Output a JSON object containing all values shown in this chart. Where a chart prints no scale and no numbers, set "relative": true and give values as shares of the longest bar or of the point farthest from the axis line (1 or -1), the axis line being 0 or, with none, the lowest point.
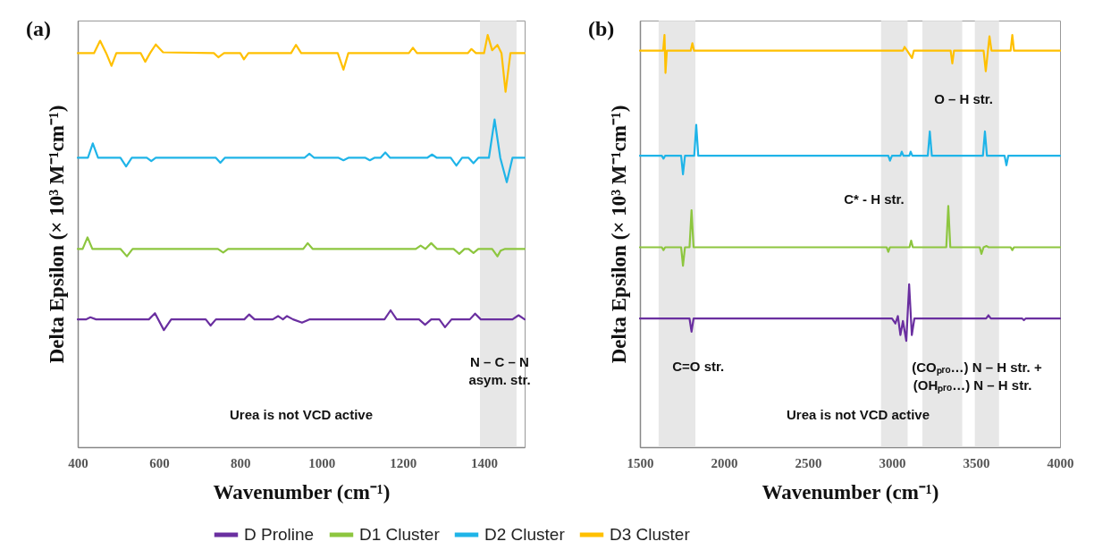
{
  "chart_data": [
    {
      "type": "line",
      "title": "(a)",
      "xlabel": "Wavenumber (cm⁻¹)",
      "ylabel": "Delta Epsilon (× 10³ M⁻¹cm⁻¹)",
      "relative": true,
      "xlim": [
        400,
        1500
      ],
      "xticks": [
        400,
        600,
        800,
        1000,
        1200,
        1400
      ],
      "legend": "bottom",
      "grid": false,
      "marker": "none",
      "line_style": "solid",
      "series": [
        {
          "name": "D Proline",
          "color": "#6a2fa0",
          "x": [
            400,
            420,
            431,
            445,
            575,
            590,
            612,
            630,
            715,
            727,
            740,
            810,
            822,
            835,
            880,
            893,
            905,
            915,
            930,
            952,
            970,
            1155,
            1170,
            1185,
            1240,
            1255,
            1270,
            1290,
            1304,
            1320,
            1365,
            1378,
            1392,
            1470,
            1485,
            1500
          ],
          "values": [
            0.31,
            0.31,
            0.315,
            0.31,
            0.31,
            0.325,
            0.284,
            0.31,
            0.31,
            0.295,
            0.31,
            0.31,
            0.322,
            0.31,
            0.31,
            0.318,
            0.31,
            0.318,
            0.31,
            0.302,
            0.31,
            0.31,
            0.332,
            0.31,
            0.31,
            0.297,
            0.31,
            0.31,
            0.291,
            0.31,
            0.31,
            0.324,
            0.31,
            0.31,
            0.32,
            0.31
          ]
        },
        {
          "name": "D1 Cluster",
          "color": "#8dc63f",
          "x": [
            400,
            412,
            424,
            436,
            505,
            521,
            535,
            745,
            758,
            770,
            955,
            966,
            978,
            1232,
            1244,
            1256,
            1270,
            1284,
            1325,
            1339,
            1352,
            1362,
            1374,
            1386,
            1420,
            1433,
            1441,
            1452,
            1500
          ],
          "values": [
            0.481,
            0.481,
            0.509,
            0.481,
            0.481,
            0.463,
            0.481,
            0.481,
            0.472,
            0.481,
            0.481,
            0.495,
            0.481,
            0.481,
            0.489,
            0.481,
            0.495,
            0.481,
            0.481,
            0.469,
            0.481,
            0.481,
            0.471,
            0.481,
            0.481,
            0.463,
            0.477,
            0.481,
            0.481
          ]
        },
        {
          "name": "D2 Cluster",
          "color": "#1fb4e8",
          "x": [
            400,
            425,
            437,
            450,
            505,
            519,
            533,
            570,
            581,
            592,
            740,
            751,
            762,
            958,
            970,
            982,
            1042,
            1054,
            1066,
            1108,
            1119,
            1130,
            1145,
            1157,
            1169,
            1260,
            1272,
            1284,
            1318,
            1332,
            1346,
            1362,
            1374,
            1386,
            1412,
            1426,
            1440,
            1456,
            1470,
            1500
          ],
          "values": [
            0.702,
            0.702,
            0.737,
            0.702,
            0.702,
            0.681,
            0.702,
            0.702,
            0.694,
            0.702,
            0.702,
            0.69,
            0.702,
            0.702,
            0.712,
            0.702,
            0.702,
            0.696,
            0.702,
            0.702,
            0.696,
            0.702,
            0.702,
            0.715,
            0.702,
            0.702,
            0.71,
            0.702,
            0.702,
            0.683,
            0.702,
            0.702,
            0.689,
            0.702,
            0.702,
            0.795,
            0.702,
            0.643,
            0.702,
            0.702
          ]
        },
        {
          "name": "D3 Cluster",
          "color": "#ffc000",
          "x": [
            400,
            440,
            455,
            470,
            483,
            495,
            555,
            566,
            578,
            592,
            610,
            735,
            746,
            760,
            800,
            809,
            820,
            925,
            937,
            950,
            1040,
            1054,
            1066,
            1215,
            1225,
            1235,
            1360,
            1369,
            1380,
            1400,
            1409,
            1420,
            1433,
            1443,
            1453,
            1465,
            1500
          ],
          "values": [
            0.956,
            0.956,
            0.986,
            0.956,
            0.925,
            0.956,
            0.956,
            0.935,
            0.956,
            0.977,
            0.958,
            0.956,
            0.946,
            0.956,
            0.956,
            0.941,
            0.956,
            0.956,
            0.976,
            0.956,
            0.956,
            0.916,
            0.956,
            0.956,
            0.969,
            0.956,
            0.956,
            0.966,
            0.956,
            0.956,
            1,
            0.963,
            0.976,
            0.956,
            0.862,
            0.956,
            0.956
          ]
        }
      ],
      "bands": [
        {
          "axis": "x",
          "from": 1390,
          "to": 1480,
          "color": "#e3e3e3"
        }
      ],
      "annotations": [
        "N – C – N",
        "asym. str.",
        "Urea is not VCD active"
      ]
    },
    {
      "type": "line",
      "title": "(b)",
      "xlabel": "Wavenumber (cm⁻¹)",
      "ylabel": "Delta Epsilon (× 10³ M⁻¹cm⁻¹)",
      "relative": true,
      "xlim": [
        1500,
        4000
      ],
      "xticks": [
        1500,
        2000,
        2500,
        3000,
        3500,
        4000
      ],
      "legend": "bottom",
      "grid": false,
      "marker": "none",
      "line_style": "solid",
      "series": [
        {
          "name": "D Proline",
          "color": "#6a2fa0",
          "x": [
            1500,
            1795,
            1807,
            1819,
            3000,
            3020,
            3035,
            3050,
            3065,
            3085,
            3102,
            3118,
            3133,
            3560,
            3574,
            3588,
            3775,
            3785,
            3795,
            4000
          ],
          "values": [
            0.312,
            0.312,
            0.28,
            0.312,
            0.312,
            0.3,
            0.318,
            0.272,
            0.306,
            0.258,
            0.395,
            0.272,
            0.312,
            0.312,
            0.32,
            0.312,
            0.312,
            0.308,
            0.312,
            0.312
          ]
        },
        {
          "name": "D1 Cluster",
          "color": "#8dc63f",
          "x": [
            1500,
            1630,
            1640,
            1650,
            1745,
            1756,
            1768,
            1795,
            1807,
            1819,
            2968,
            2978,
            2988,
            3104,
            3114,
            3124,
            3323,
            3335,
            3347,
            3522,
            3532,
            3545,
            3563,
            3575,
            3706,
            3716,
            3726,
            4000
          ],
          "values": [
            0.485,
            0.485,
            0.478,
            0.485,
            0.485,
            0.44,
            0.485,
            0.485,
            0.575,
            0.485,
            0.485,
            0.474,
            0.485,
            0.485,
            0.501,
            0.485,
            0.485,
            0.585,
            0.485,
            0.485,
            0.469,
            0.485,
            0.488,
            0.485,
            0.485,
            0.478,
            0.485,
            0.485
          ]
        },
        {
          "name": "D2 Cluster",
          "color": "#1fb4e8",
          "x": [
            1500,
            1630,
            1640,
            1650,
            1745,
            1756,
            1768,
            1823,
            1835,
            1847,
            2978,
            2988,
            3000,
            3050,
            3058,
            3068,
            3103,
            3111,
            3121,
            3213,
            3225,
            3237,
            3541,
            3553,
            3565,
            3670,
            3681,
            3692,
            4000
          ],
          "values": [
            0.707,
            0.707,
            0.7,
            0.707,
            0.707,
            0.662,
            0.707,
            0.707,
            0.782,
            0.707,
            0.707,
            0.695,
            0.707,
            0.707,
            0.717,
            0.707,
            0.707,
            0.717,
            0.707,
            0.707,
            0.766,
            0.707,
            0.707,
            0.766,
            0.707,
            0.707,
            0.684,
            0.707,
            0.707
          ]
        },
        {
          "name": "D3 Cluster",
          "color": "#ffc000",
          "x": [
            1500,
            1638,
            1646,
            1652,
            1660,
            1802,
            1812,
            1822,
            3065,
            3075,
            3090,
            3119,
            3130,
            3349,
            3359,
            3369,
            3545,
            3558,
            3580,
            3592,
            3706,
            3716,
            3726,
            4000
          ],
          "values": [
            0.962,
            0.962,
            1,
            0.908,
            0.962,
            0.962,
            0.98,
            0.962,
            0.962,
            0.971,
            0.962,
            0.944,
            0.962,
            0.962,
            0.931,
            0.962,
            0.962,
            0.912,
            0.997,
            0.962,
            0.962,
            1,
            0.962,
            0.962
          ]
        }
      ],
      "bands": [
        {
          "axis": "x",
          "from": 1611,
          "to": 1830,
          "color": "#e3e3e3"
        },
        {
          "axis": "x",
          "from": 2935,
          "to": 3093,
          "color": "#e3e3e3"
        },
        {
          "axis": "x",
          "from": 3181,
          "to": 3418,
          "color": "#e3e3e3"
        },
        {
          "axis": "x",
          "from": 3493,
          "to": 3637,
          "color": "#e3e3e3"
        }
      ],
      "annotations": [
        {
          "text": "C=O str.",
          "x": 1847,
          "y": 0.195
        },
        {
          "text": "O – H str.",
          "x": 3426,
          "y": 0.844
        },
        "C* - H str.",
        {
          "text": "(COₚᵣₒ…) N – H str. +",
          "x": 3505,
          "y": 0.193
        },
        {
          "text": "(OHₚᵣₒ…) N – H str.",
          "x": 3479,
          "y": 0.15
        },
        "Urea is not VCD active"
      ]
    }
  ]
}
